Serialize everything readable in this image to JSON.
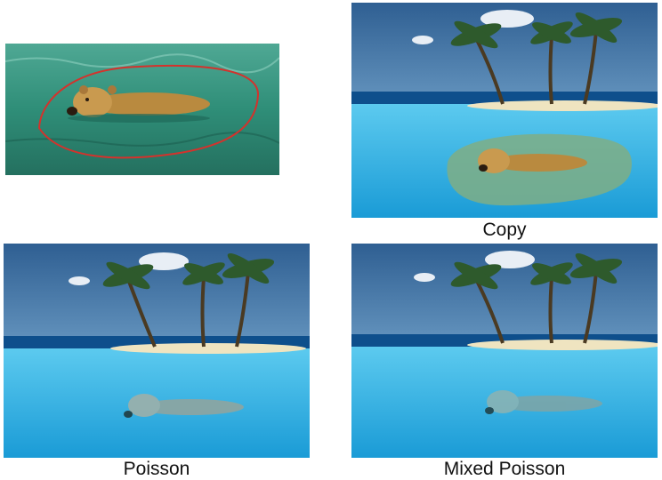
{
  "panels": {
    "source": {
      "caption": ""
    },
    "copy": {
      "caption": "Copy"
    },
    "poisson": {
      "caption": "Poisson"
    },
    "mixed_poisson": {
      "caption": "Mixed Poisson"
    }
  },
  "colors": {
    "sky": "#3d6f9e",
    "horizon_sea": "#0e4f8c",
    "pool_water": "#2bb3e6",
    "sand": "#efe4c0",
    "green_water": "#2f8e78",
    "bear": "#b98a3f",
    "selection_outline": "#d4322c"
  },
  "icons": [
    "palm-tree-icon",
    "bear-icon",
    "cloud-icon"
  ]
}
